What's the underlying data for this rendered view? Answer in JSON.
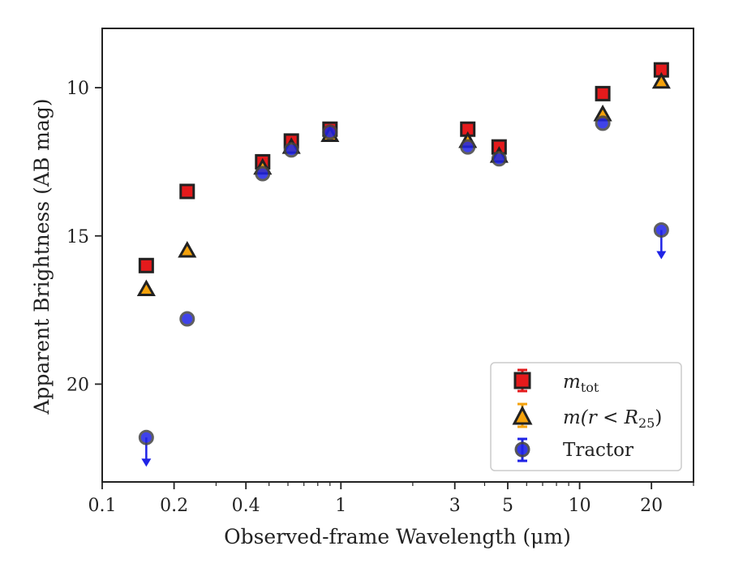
{
  "chart_data": {
    "type": "scatter",
    "title": "",
    "xlabel": "Observed-frame Wavelength (μm)",
    "ylabel": "Apparent Brightness (AB mag)",
    "x_scale": "log",
    "xlim": [
      0.1,
      30
    ],
    "ylim": [
      23.3,
      8.0
    ],
    "y_inverted": true,
    "x_ticks": [
      0.1,
      0.2,
      0.4,
      1,
      3,
      5,
      10,
      20
    ],
    "x_tick_labels": [
      "0.1",
      "0.2",
      "0.4",
      "1",
      "3",
      "5",
      "10",
      "20"
    ],
    "y_ticks": [
      10,
      15,
      20
    ],
    "y_tick_labels": [
      "10",
      "15",
      "20"
    ],
    "grid": false,
    "legend_position": "lower-right",
    "series": [
      {
        "name": "m_tot",
        "legend_label_base": "m",
        "legend_label_sub": "tot",
        "marker": "square",
        "color": "#e41a1c",
        "x": [
          0.153,
          0.227,
          0.47,
          0.62,
          0.9,
          3.4,
          4.6,
          12.5,
          22
        ],
        "y": [
          16.0,
          13.5,
          12.5,
          11.8,
          11.4,
          11.4,
          12.0,
          10.2,
          9.4
        ]
      },
      {
        "name": "m(r < R25)",
        "legend_label_base": "m(r < R",
        "legend_label_sub": "25",
        "legend_label_end": ")",
        "marker": "triangle",
        "color": "#f4a20c",
        "x": [
          0.153,
          0.227,
          0.47,
          0.62,
          0.9,
          3.4,
          4.6,
          12.5,
          22
        ],
        "y": [
          16.8,
          15.5,
          12.7,
          12.0,
          11.6,
          11.8,
          12.3,
          10.9,
          9.8
        ]
      },
      {
        "name": "Tractor",
        "marker": "circle",
        "color": "#1f23e6",
        "x": [
          0.153,
          0.227,
          0.47,
          0.62,
          0.9,
          3.4,
          4.6,
          12.5,
          22
        ],
        "y": [
          21.8,
          17.8,
          12.9,
          12.1,
          11.5,
          12.0,
          12.4,
          11.2,
          14.8
        ],
        "upper_limits": [
          true,
          false,
          false,
          false,
          false,
          false,
          false,
          false,
          true
        ]
      }
    ]
  }
}
